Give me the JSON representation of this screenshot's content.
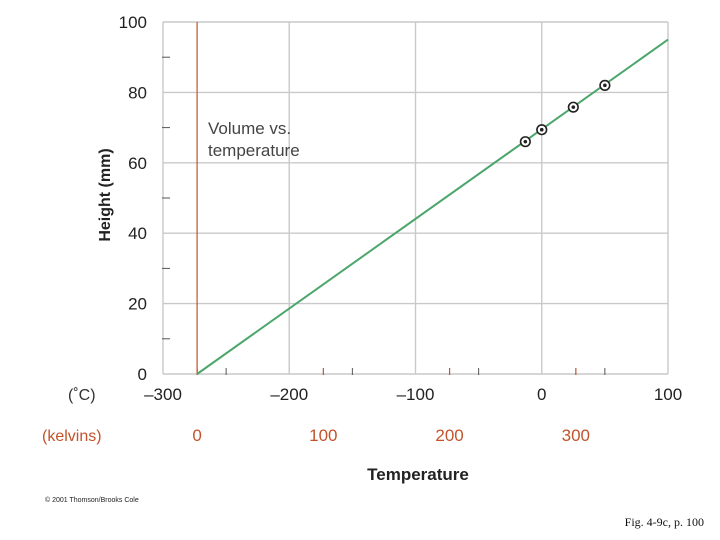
{
  "chart_data": {
    "type": "scatter",
    "annotation": [
      "Volume vs.",
      "temperature"
    ],
    "ylabel": "Height (mm)",
    "xlabel": "Temperature",
    "x_unit_label": "(˚C)",
    "x2_unit_label": "(kelvins)",
    "xlim": [
      -300,
      100
    ],
    "ylim": [
      0,
      100
    ],
    "x_ticks": [
      -300,
      -200,
      -100,
      0,
      100
    ],
    "x_tick_labels": [
      "–300",
      "–200",
      "–100",
      "0",
      "100"
    ],
    "x_minor_ticks": [
      -250,
      -150,
      -50,
      50
    ],
    "y_ticks": [
      0,
      20,
      40,
      60,
      80,
      100
    ],
    "y_tick_labels": [
      "0",
      "20",
      "40",
      "60",
      "80",
      "100"
    ],
    "y_minor_ticks": [
      10,
      30,
      50,
      70,
      90
    ],
    "kelvin_ticks_celsius": [
      -273,
      -173,
      -73,
      27
    ],
    "kelvin_tick_labels": [
      "0",
      "100",
      "200",
      "300"
    ],
    "absolute_zero_celsius": -273,
    "grid": true,
    "points": [
      {
        "x": -13,
        "y": 66
      },
      {
        "x": 0,
        "y": 69.4
      },
      {
        "x": 25,
        "y": 75.8
      },
      {
        "x": 50,
        "y": 82
      }
    ],
    "fit_line": {
      "x": [
        -273,
        100
      ],
      "y": [
        0,
        95
      ]
    },
    "colors": {
      "grid": "#c9c9c9",
      "line": "#4aa66a",
      "kelvin": "#c2532b",
      "text": "#222222",
      "point": "#222222"
    }
  },
  "footer": {
    "copyright": "© 2001 Thomson/Brooks Cole",
    "figure_ref": "Fig. 4-9c, p. 100"
  }
}
